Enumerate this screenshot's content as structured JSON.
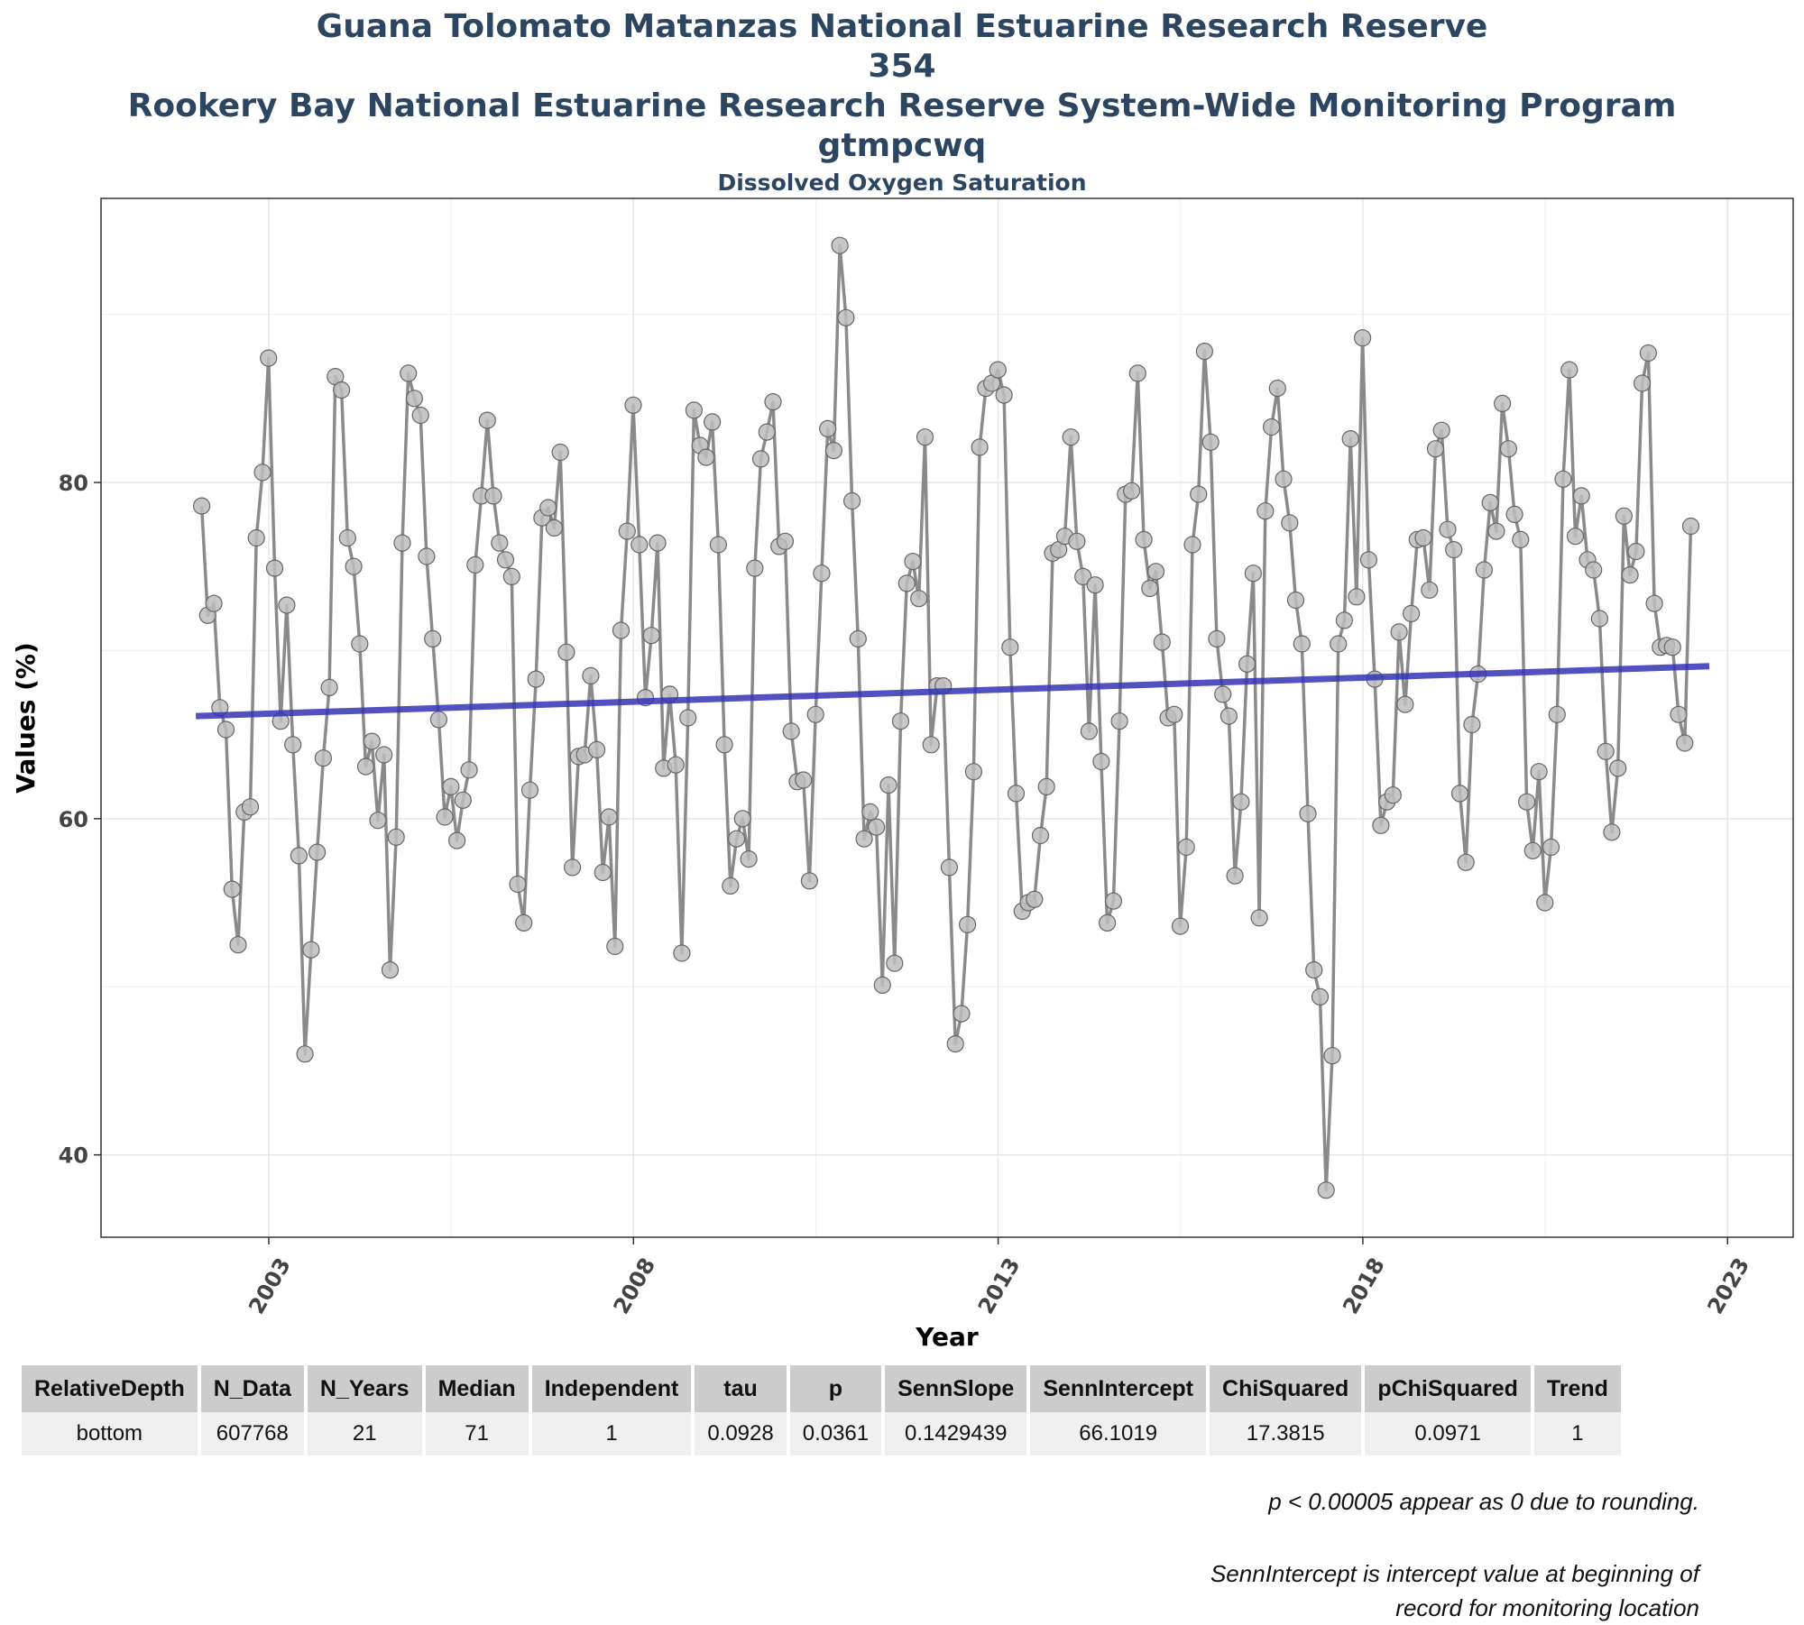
{
  "titles": {
    "line1": "Guana Tolomato Matanzas National Estuarine Research Reserve",
    "line2": "354",
    "line3": "Rookery Bay National Estuarine Research Reserve System-Wide Monitoring Program",
    "line4": "gtmpcwq",
    "subtitle": "Dissolved Oxygen Saturation"
  },
  "chart_data": {
    "type": "line",
    "xlabel": "Year",
    "ylabel": "Values (%)",
    "xlim": [
      2000.7,
      2023.9
    ],
    "ylim": [
      35.1,
      96.9
    ],
    "x_ticks": [
      "2003",
      "2008",
      "2013",
      "2018",
      "2023"
    ],
    "y_ticks": [
      "40",
      "60",
      "80"
    ],
    "grid": true,
    "colors": {
      "line": "#8a8a8a",
      "point_fill": "#bdbdbd",
      "point_stroke": "#666666",
      "trend": "#3232b4",
      "grid": "#e6e6e6",
      "axis": "#333333"
    },
    "series": [
      {
        "x_start_year": 2002.08,
        "step_months": 1,
        "values": [
          78.6,
          72.1,
          72.8,
          66.6,
          65.3,
          55.8,
          52.5,
          60.4,
          60.7,
          76.7,
          80.6,
          87.4,
          74.9,
          65.8,
          72.7,
          64.4,
          57.8,
          46.0,
          52.2,
          58.0,
          63.6,
          67.8,
          86.3,
          85.5,
          76.7,
          75.0,
          70.4,
          63.1,
          64.6,
          59.9,
          63.8,
          51.0,
          58.9,
          76.4,
          86.5,
          85.0,
          84.0,
          75.6,
          70.7,
          65.9,
          60.1,
          61.9,
          58.7,
          61.1,
          62.9,
          75.1,
          79.2,
          83.7,
          79.2,
          76.4,
          75.4,
          74.4,
          56.1,
          53.8,
          61.7,
          68.3,
          77.9,
          78.5,
          77.3,
          81.8,
          69.9,
          57.1,
          63.7,
          63.8,
          68.5,
          64.1,
          56.8,
          60.1,
          52.4,
          71.2,
          77.1,
          84.6,
          76.3,
          67.2,
          70.9,
          76.4,
          63.0,
          67.4,
          63.2,
          52.0,
          66.0,
          84.3,
          82.2,
          81.5,
          83.6,
          76.3,
          64.4,
          56.0,
          58.8,
          60.0,
          57.6,
          74.9,
          81.4,
          83.0,
          84.8,
          76.2,
          76.5,
          65.2,
          62.2,
          62.3,
          56.3,
          66.2,
          74.6,
          83.2,
          81.9,
          94.1,
          89.8,
          78.9,
          70.7,
          58.8,
          60.4,
          59.5,
          50.1,
          62.0,
          51.4,
          65.8,
          74.0,
          75.3,
          73.1,
          82.7,
          64.4,
          67.9,
          67.9,
          57.1,
          46.6,
          48.4,
          53.7,
          62.8,
          82.1,
          85.6,
          85.9,
          86.7,
          85.2,
          70.2,
          61.5,
          54.5,
          55.0,
          55.2,
          59.0,
          61.9,
          75.8,
          76.0,
          76.8,
          82.7,
          76.5,
          74.4,
          65.2,
          73.9,
          63.4,
          53.8,
          55.1,
          65.8,
          79.3,
          79.5,
          86.5,
          76.6,
          73.7,
          74.7,
          70.5,
          66.0,
          66.2,
          53.6,
          58.3,
          76.3,
          79.3,
          87.8,
          82.4,
          70.7,
          67.4,
          66.1,
          56.6,
          61.0,
          69.2,
          74.6,
          54.1,
          78.3,
          83.3,
          85.6,
          80.2,
          77.6,
          73.0,
          70.4,
          60.3,
          51.0,
          49.4,
          37.9,
          45.9,
          70.4,
          71.8,
          82.6,
          73.2,
          88.6,
          75.4,
          68.3,
          59.6,
          61.0,
          61.4,
          71.1,
          66.8,
          72.2,
          76.6,
          76.7,
          73.6,
          82.0,
          83.1,
          77.2,
          76.0,
          61.5,
          57.4,
          65.6,
          68.6,
          74.8,
          78.8,
          77.1,
          84.7,
          82.0,
          78.1,
          76.6,
          61.0,
          58.1,
          62.8,
          55.0,
          58.3,
          66.2,
          80.2,
          86.7,
          76.8,
          79.2,
          75.4,
          74.8,
          71.9,
          64.0,
          59.2,
          63.0,
          78.0,
          74.5,
          75.9,
          85.9,
          87.7,
          72.8,
          70.2,
          70.3,
          70.2,
          66.2,
          64.5,
          77.4
        ]
      }
    ],
    "trend": {
      "x": [
        2002.0,
        2022.75
      ],
      "y": [
        66.1019,
        69.07
      ]
    }
  },
  "table": {
    "headers": [
      "RelativeDepth",
      "N_Data",
      "N_Years",
      "Median",
      "Independent",
      "tau",
      "p",
      "SennSlope",
      "SennIntercept",
      "ChiSquared",
      "pChiSquared",
      "Trend"
    ],
    "rows": [
      [
        "bottom",
        "607768",
        "21",
        "71",
        "1",
        "0.0928",
        "0.0361",
        "0.1429439",
        "66.1019",
        "17.3815",
        "0.0971",
        "1"
      ]
    ]
  },
  "notes": {
    "rounding": "p < 0.00005 appear as 0 due to rounding.",
    "intercept_line1": "SennIntercept is intercept value at beginning of",
    "intercept_line2": "record for monitoring location"
  }
}
